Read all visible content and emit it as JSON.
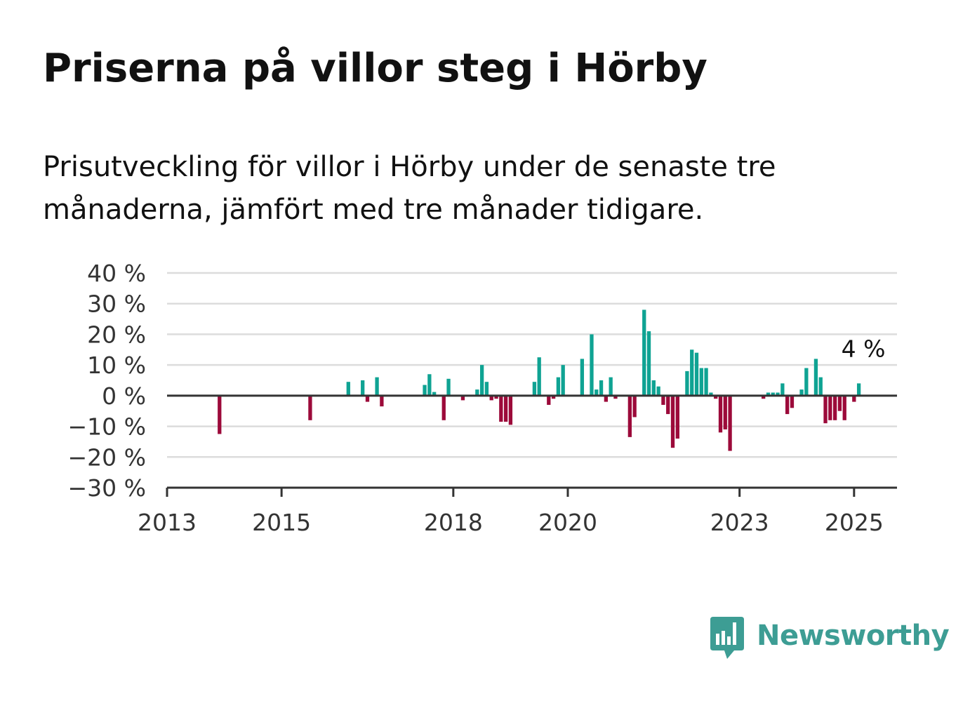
{
  "title": "Priserna på villor steg i Hörby",
  "subtitle": "Prisutveckling för villor i Hörby under de senaste tre månaderna, jämfört med tre månader tidigare.",
  "brand": {
    "name": "Newsworthy",
    "icon": "newsworthy-logo-icon",
    "color": "#3d9d94"
  },
  "colors": {
    "positive": "#0fa393",
    "negative": "#9c0a3a",
    "grid": "#dcdcdc",
    "axis": "#333333"
  },
  "chart_data": {
    "type": "bar",
    "title": "",
    "xlabel": "",
    "ylabel": "",
    "ylim": [
      -30,
      40
    ],
    "xlim": [
      "2013-01",
      "2025-10"
    ],
    "grid": true,
    "legend": "none",
    "y_ticks": [
      {
        "value": 40,
        "label": "40 %"
      },
      {
        "value": 30,
        "label": "30 %"
      },
      {
        "value": 20,
        "label": "20 %"
      },
      {
        "value": 10,
        "label": "10 %"
      },
      {
        "value": 0,
        "label": "0 %"
      },
      {
        "value": -10,
        "label": "−10 %"
      },
      {
        "value": -20,
        "label": "−20 %"
      },
      {
        "value": -30,
        "label": "−30 %"
      }
    ],
    "x_ticks": [
      {
        "value": "2013-01",
        "label": "2013"
      },
      {
        "value": "2015-01",
        "label": "2015"
      },
      {
        "value": "2018-01",
        "label": "2018"
      },
      {
        "value": "2020-01",
        "label": "2020"
      },
      {
        "value": "2023-01",
        "label": "2023"
      },
      {
        "value": "2025-01",
        "label": "2025"
      }
    ],
    "annotation": {
      "date": "2025-03",
      "value": 4,
      "text": "4 %"
    },
    "points": [
      {
        "date": "2013-12",
        "value": -12.5
      },
      {
        "date": "2015-07",
        "value": -8
      },
      {
        "date": "2016-03",
        "value": 4.5
      },
      {
        "date": "2016-06",
        "value": 5
      },
      {
        "date": "2016-07",
        "value": -2
      },
      {
        "date": "2016-09",
        "value": 6
      },
      {
        "date": "2016-10",
        "value": -3.5
      },
      {
        "date": "2017-07",
        "value": 3.5
      },
      {
        "date": "2017-08",
        "value": 7
      },
      {
        "date": "2017-09",
        "value": 1.2
      },
      {
        "date": "2017-11",
        "value": -8
      },
      {
        "date": "2017-12",
        "value": 5.5
      },
      {
        "date": "2018-03",
        "value": -1.5
      },
      {
        "date": "2018-06",
        "value": 2
      },
      {
        "date": "2018-07",
        "value": 10
      },
      {
        "date": "2018-08",
        "value": 4.5
      },
      {
        "date": "2018-09",
        "value": -1.5
      },
      {
        "date": "2018-10",
        "value": -1
      },
      {
        "date": "2018-11",
        "value": -8.5
      },
      {
        "date": "2018-12",
        "value": -8.5
      },
      {
        "date": "2019-01",
        "value": -9.5
      },
      {
        "date": "2019-06",
        "value": 4.5
      },
      {
        "date": "2019-07",
        "value": 12.5
      },
      {
        "date": "2019-09",
        "value": -3
      },
      {
        "date": "2019-10",
        "value": -1
      },
      {
        "date": "2019-11",
        "value": 6
      },
      {
        "date": "2019-12",
        "value": 10
      },
      {
        "date": "2020-04",
        "value": 12
      },
      {
        "date": "2020-06",
        "value": 20
      },
      {
        "date": "2020-07",
        "value": 2
      },
      {
        "date": "2020-08",
        "value": 5
      },
      {
        "date": "2020-09",
        "value": -2
      },
      {
        "date": "2020-10",
        "value": 6
      },
      {
        "date": "2020-11",
        "value": -1
      },
      {
        "date": "2021-02",
        "value": -13.5
      },
      {
        "date": "2021-03",
        "value": -7
      },
      {
        "date": "2021-05",
        "value": 28
      },
      {
        "date": "2021-06",
        "value": 21
      },
      {
        "date": "2021-07",
        "value": 5
      },
      {
        "date": "2021-08",
        "value": 3
      },
      {
        "date": "2021-09",
        "value": -3
      },
      {
        "date": "2021-10",
        "value": -6
      },
      {
        "date": "2021-11",
        "value": -17
      },
      {
        "date": "2021-12",
        "value": -14
      },
      {
        "date": "2022-02",
        "value": 8
      },
      {
        "date": "2022-03",
        "value": 15
      },
      {
        "date": "2022-04",
        "value": 14
      },
      {
        "date": "2022-05",
        "value": 9
      },
      {
        "date": "2022-06",
        "value": 9
      },
      {
        "date": "2022-07",
        "value": 1
      },
      {
        "date": "2022-08",
        "value": -1
      },
      {
        "date": "2022-09",
        "value": -12
      },
      {
        "date": "2022-10",
        "value": -11
      },
      {
        "date": "2022-11",
        "value": -18
      },
      {
        "date": "2023-06",
        "value": -1
      },
      {
        "date": "2023-07",
        "value": 1
      },
      {
        "date": "2023-08",
        "value": 1
      },
      {
        "date": "2023-09",
        "value": 1
      },
      {
        "date": "2023-10",
        "value": 4
      },
      {
        "date": "2023-11",
        "value": -6
      },
      {
        "date": "2023-12",
        "value": -4
      },
      {
        "date": "2024-02",
        "value": 2
      },
      {
        "date": "2024-03",
        "value": 9
      },
      {
        "date": "2024-05",
        "value": 12
      },
      {
        "date": "2024-06",
        "value": 6
      },
      {
        "date": "2024-07",
        "value": -9
      },
      {
        "date": "2024-08",
        "value": -8
      },
      {
        "date": "2024-09",
        "value": -8
      },
      {
        "date": "2024-10",
        "value": -5
      },
      {
        "date": "2024-11",
        "value": -8
      },
      {
        "date": "2025-01",
        "value": -2
      },
      {
        "date": "2025-02",
        "value": 4
      }
    ]
  }
}
